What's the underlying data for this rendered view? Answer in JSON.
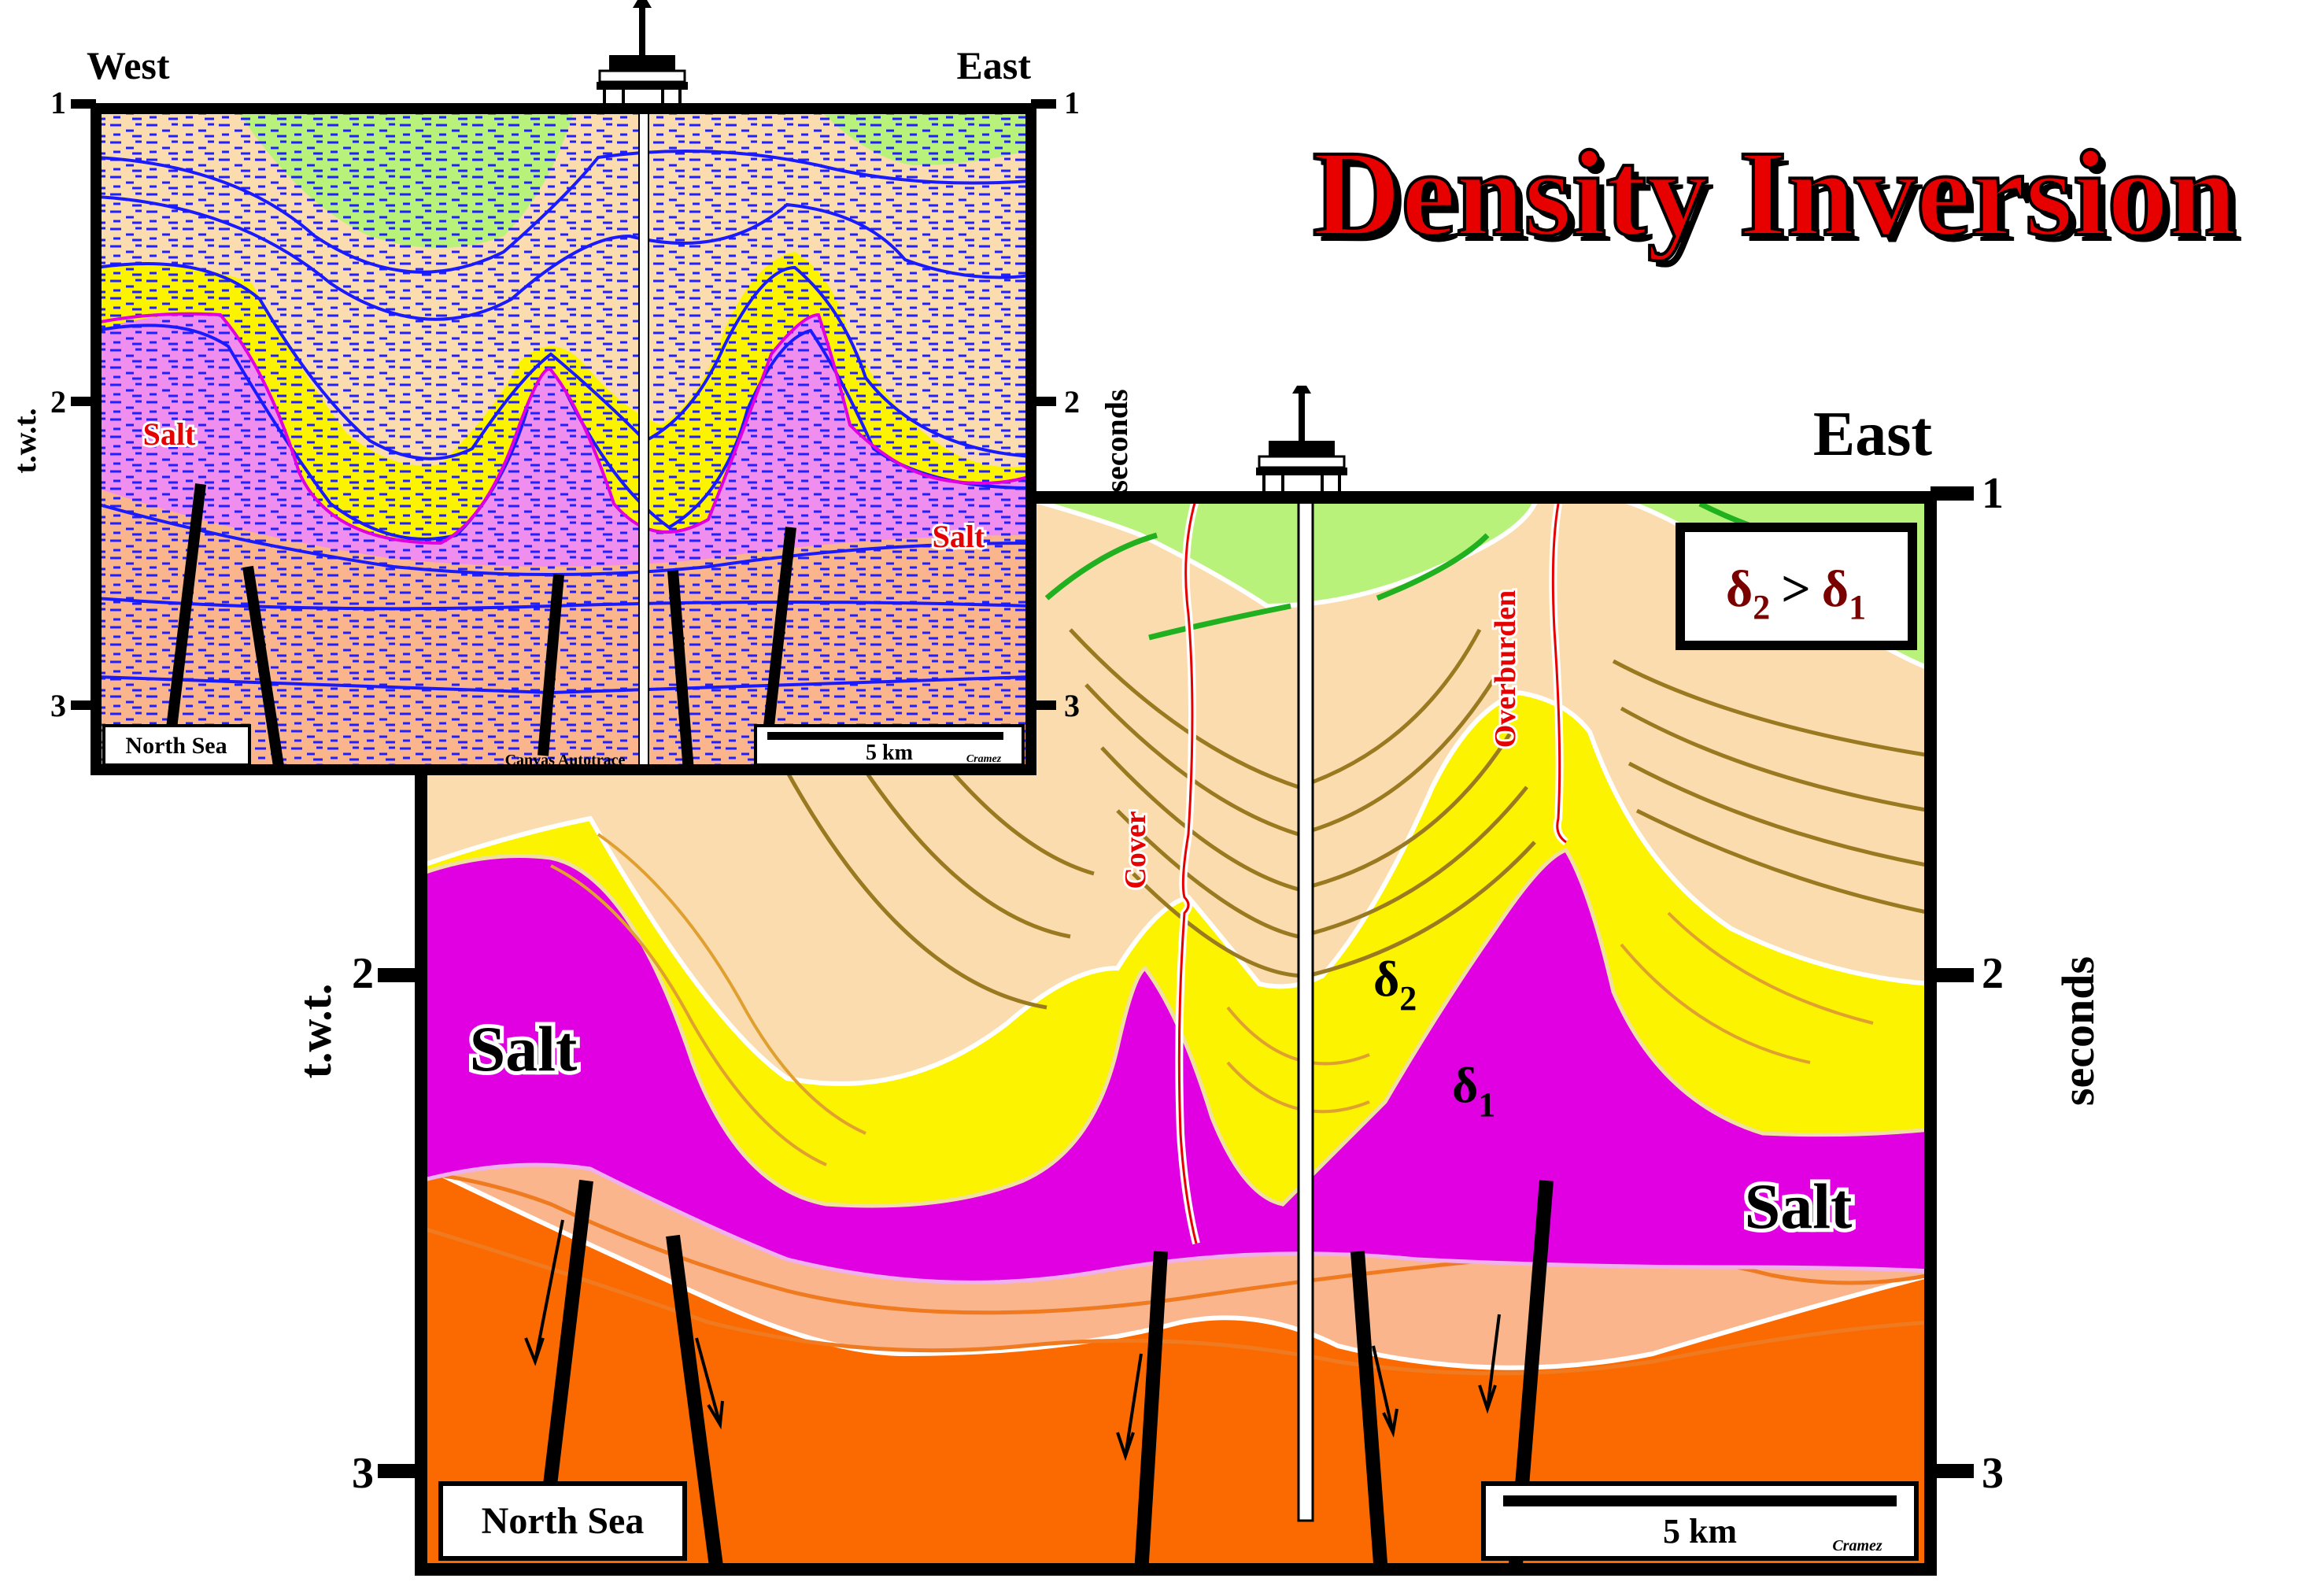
{
  "title": "Density Inversion",
  "seismic": {
    "west": "West",
    "east": "East",
    "ticks": [
      "1",
      "2",
      "3"
    ],
    "left_axis": "t.w.t.",
    "right_axis": "seconds",
    "salt_left": "Salt",
    "salt_right": "Salt",
    "location": "North Sea",
    "scale": "5 km",
    "credit": "Cramez",
    "software": "Canvas Autotrace"
  },
  "interp": {
    "east": "East",
    "ticks": [
      "1",
      "2",
      "3"
    ],
    "left_axis": "t.w.t.",
    "right_axis": "seconds",
    "salt_left": "Salt",
    "salt_right": "Salt",
    "location": "North Sea",
    "scale": "5 km",
    "credit": "Cramez",
    "cover": "Cover",
    "overburden": "Overburden",
    "delta2": "δ",
    "delta2_sub": "2",
    "delta1": "δ",
    "delta1_sub": "1",
    "legend": {
      "d": "δ",
      "sub2": "2",
      "gt": ">",
      "sub1": "1"
    }
  },
  "colors": {
    "green": "#b8f27a",
    "tan": "#fbdcae",
    "yellow": "#fbf300",
    "salt": "#e100e1",
    "lightorange": "#fbb58c",
    "orange": "#fb6a00",
    "seismic_blue": "#1a1aff",
    "title_red": "#e60000"
  }
}
